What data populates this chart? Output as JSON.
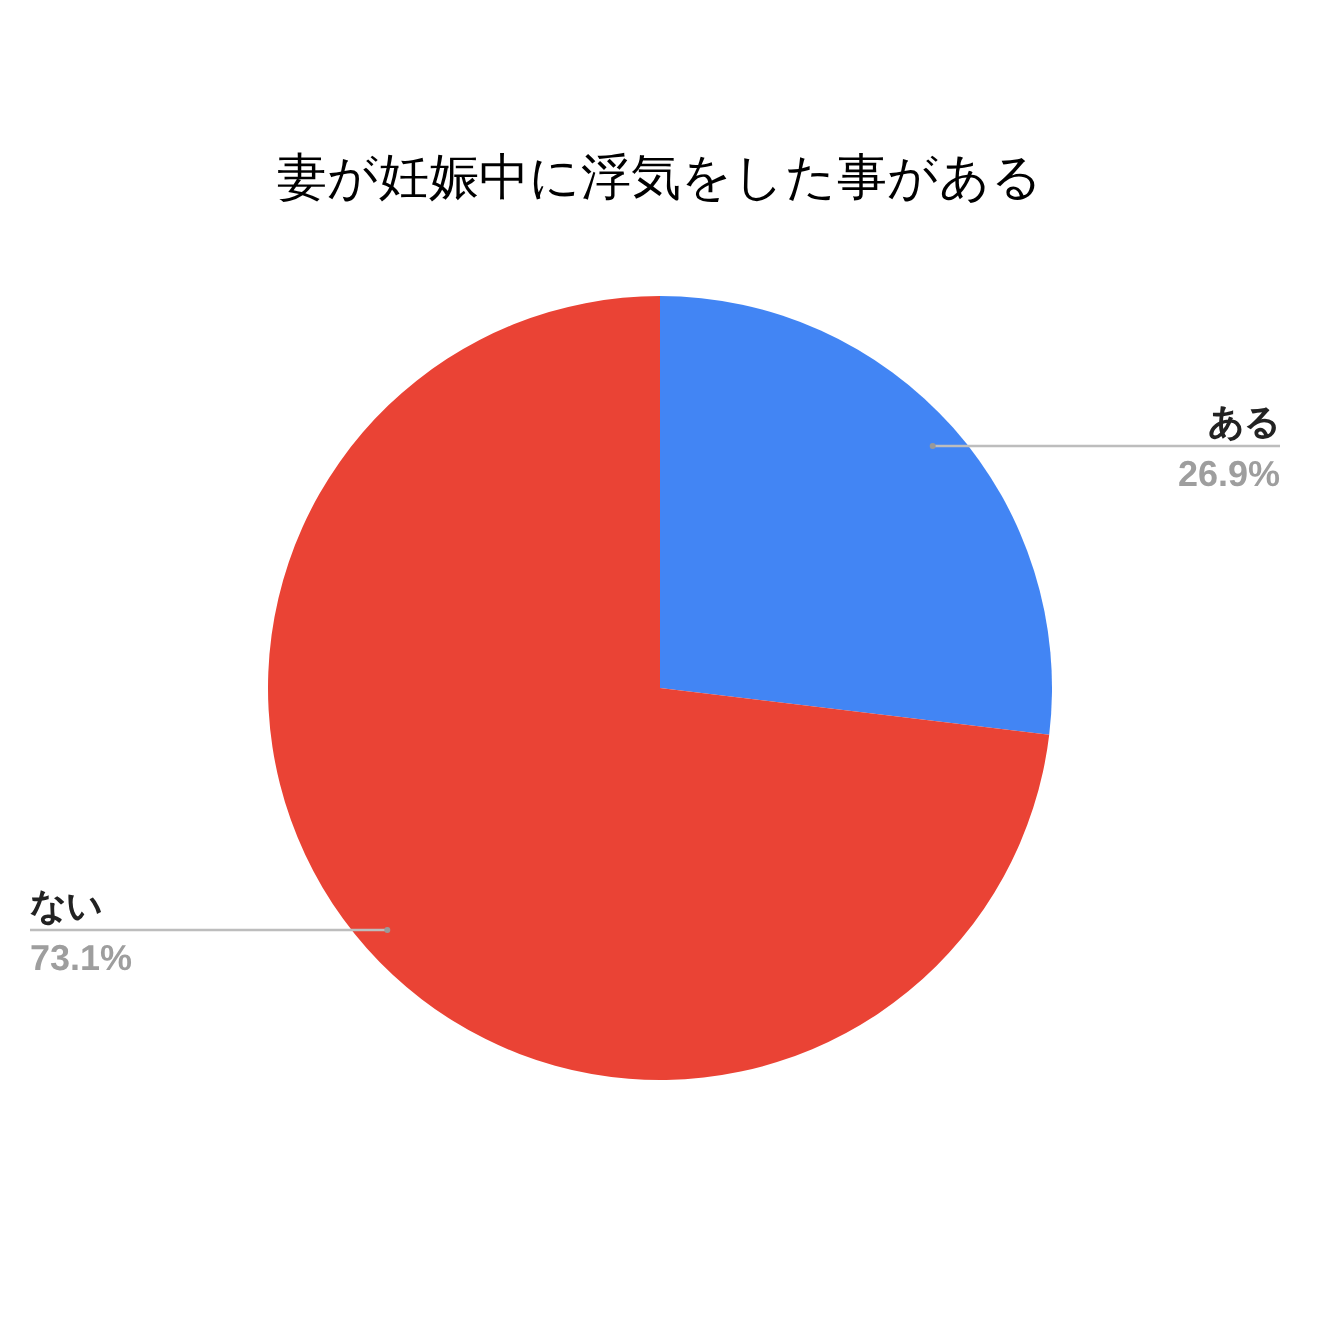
{
  "chart_data": {
    "type": "pie",
    "title": "妻が妊娠中に浮気をした事がある",
    "categories": [
      "ある",
      "ない"
    ],
    "values": [
      26.9,
      73.1
    ],
    "colors": [
      "#4285f4",
      "#ea4335"
    ],
    "value_labels": [
      "26.9%",
      "73.1%"
    ]
  }
}
